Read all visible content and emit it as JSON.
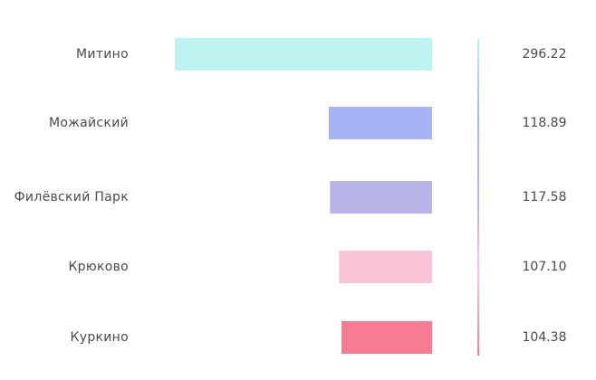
{
  "chart_data": {
    "type": "bar",
    "orientation": "horizontal",
    "bar_direction": "right-to-left",
    "categories": [
      "Митино",
      "Можайский",
      "Филёвский Парк",
      "Крюково",
      "Куркино"
    ],
    "values": [
      296.22,
      118.89,
      117.58,
      107.1,
      104.38
    ],
    "value_labels": [
      "296.22",
      "118.89",
      "117.58",
      "107.10",
      "104.38"
    ],
    "colors": [
      "#bdf3f0",
      "#a6b3f5",
      "#b9b4e8",
      "#fbc3d6",
      "#f77c93"
    ],
    "divider_gradient": [
      "#bdf3f0",
      "#a6b3f5",
      "#b9b4e8",
      "#fbc3d6",
      "#f77c93"
    ],
    "grid": false,
    "legend": "none"
  }
}
